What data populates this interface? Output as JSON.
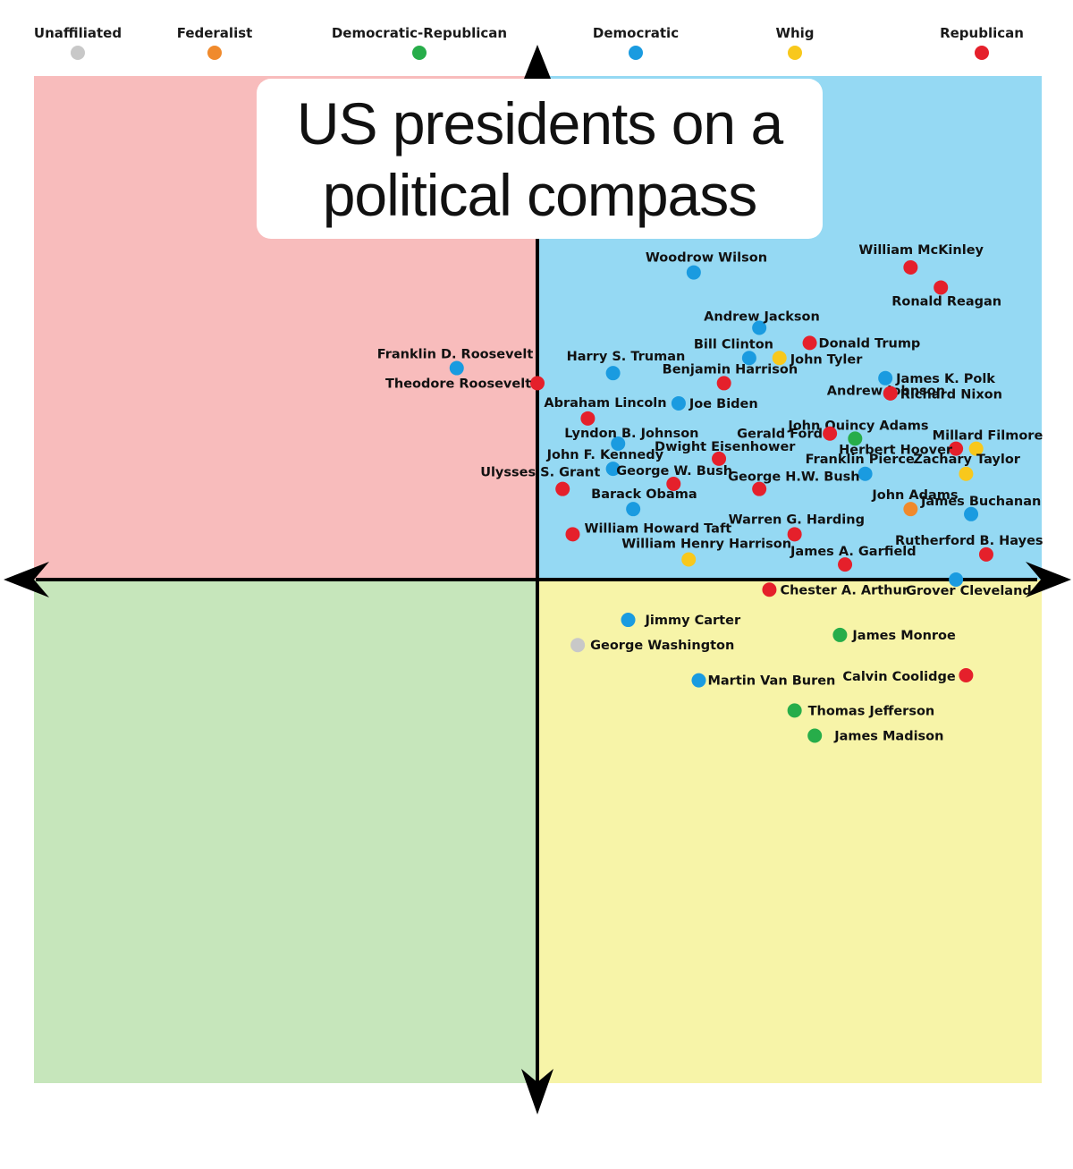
{
  "chart_data": {
    "type": "scatter",
    "title": "US presidents on a political compass",
    "xlim": [
      -1,
      1
    ],
    "ylim": [
      -1,
      1
    ],
    "grid": false,
    "legend_placement": "top",
    "quadrant_colors": {
      "top_left": "#f8bcbc",
      "top_right": "#95d9f3",
      "bottom_left": "#c6e6bb",
      "bottom_right": "#f7f4a8"
    },
    "series": [
      {
        "name": "Unaffiliated",
        "color": "#c8c8c8"
      },
      {
        "name": "Federalist",
        "color": "#f08a2c"
      },
      {
        "name": "Democratic-Republican",
        "color": "#27ad4a"
      },
      {
        "name": "Democratic",
        "color": "#1a9be0"
      },
      {
        "name": "Whig",
        "color": "#f8c81c"
      },
      {
        "name": "Republican",
        "color": "#e5202b"
      }
    ],
    "points": [
      {
        "label": "Woodrow Wilson",
        "party": "Democratic",
        "x": 0.31,
        "y": 0.61
      },
      {
        "label": "William McKinley",
        "party": "Republican",
        "x": 0.74,
        "y": 0.62
      },
      {
        "label": "Ronald Reagan",
        "party": "Republican",
        "x": 0.8,
        "y": 0.58
      },
      {
        "label": "Andrew Jackson",
        "party": "Democratic",
        "x": 0.44,
        "y": 0.5
      },
      {
        "label": "Bill Clinton",
        "party": "Democratic",
        "x": 0.42,
        "y": 0.44
      },
      {
        "label": "Donald Trump",
        "party": "Republican",
        "x": 0.54,
        "y": 0.47
      },
      {
        "label": "John Tyler",
        "party": "Whig",
        "x": 0.48,
        "y": 0.44
      },
      {
        "label": "Franklin D. Roosevelt",
        "party": "Democratic",
        "x": -0.16,
        "y": 0.42
      },
      {
        "label": "Harry S. Truman",
        "party": "Democratic",
        "x": 0.15,
        "y": 0.41
      },
      {
        "label": "Benjamin Harrison",
        "party": "Republican",
        "x": 0.37,
        "y": 0.39
      },
      {
        "label": "James K. Polk",
        "party": "Democratic",
        "x": 0.69,
        "y": 0.4
      },
      {
        "label": "Theodore Roosevelt",
        "party": "Republican",
        "x": 0.0,
        "y": 0.39
      },
      {
        "label": "Andrew Johnson",
        "party": "Republican",
        "x": 0.7,
        "y": 0.37
      },
      {
        "label": "Richard Nixon",
        "party": "Republican",
        "x": 0.7,
        "y": 0.37
      },
      {
        "label": "Abraham Lincoln",
        "party": "Republican",
        "x": 0.1,
        "y": 0.32
      },
      {
        "label": "Joe Biden",
        "party": "Democratic",
        "x": 0.28,
        "y": 0.35
      },
      {
        "label": "John Quincy Adams",
        "party": "Democratic-Republican",
        "x": 0.63,
        "y": 0.28
      },
      {
        "label": "Gerald Ford",
        "party": "Republican",
        "x": 0.58,
        "y": 0.29
      },
      {
        "label": "Millard Filmore",
        "party": "Whig",
        "x": 0.87,
        "y": 0.26
      },
      {
        "label": "Herbert Hoover",
        "party": "Republican",
        "x": 0.83,
        "y": 0.26
      },
      {
        "label": "Lyndon B. Johnson",
        "party": "Democratic",
        "x": 0.16,
        "y": 0.27
      },
      {
        "label": "Dwight Eisenhower",
        "party": "Republican",
        "x": 0.36,
        "y": 0.24
      },
      {
        "label": "John F. Kennedy",
        "party": "Democratic",
        "x": 0.15,
        "y": 0.22
      },
      {
        "label": "Franklin Pierce",
        "party": "Democratic",
        "x": 0.65,
        "y": 0.21
      },
      {
        "label": "Zachary Taylor",
        "party": "Whig",
        "x": 0.85,
        "y": 0.21
      },
      {
        "label": "Ulysses S. Grant",
        "party": "Republican",
        "x": 0.05,
        "y": 0.18
      },
      {
        "label": "George W. Bush",
        "party": "Republican",
        "x": 0.27,
        "y": 0.19
      },
      {
        "label": "George H.W. Bush",
        "party": "Republican",
        "x": 0.44,
        "y": 0.18
      },
      {
        "label": "Barack Obama",
        "party": "Democratic",
        "x": 0.19,
        "y": 0.14
      },
      {
        "label": "John Adams",
        "party": "Federalist",
        "x": 0.74,
        "y": 0.14
      },
      {
        "label": "James Buchanan",
        "party": "Democratic",
        "x": 0.86,
        "y": 0.13
      },
      {
        "label": "William Howard Taft",
        "party": "Republican",
        "x": 0.07,
        "y": 0.09
      },
      {
        "label": "Warren G. Harding",
        "party": "Republican",
        "x": 0.51,
        "y": 0.09
      },
      {
        "label": "William Henry Harrison",
        "party": "Whig",
        "x": 0.3,
        "y": 0.04
      },
      {
        "label": "James A. Garfield",
        "party": "Republican",
        "x": 0.61,
        "y": 0.03
      },
      {
        "label": "Rutherford B. Hayes",
        "party": "Republican",
        "x": 0.89,
        "y": 0.05
      },
      {
        "label": "Chester A. Arthur",
        "party": "Republican",
        "x": 0.46,
        "y": -0.02
      },
      {
        "label": "Grover Cleveland",
        "party": "Democratic",
        "x": 0.83,
        "y": -0.0
      },
      {
        "label": "Jimmy Carter",
        "party": "Democratic",
        "x": 0.18,
        "y": -0.08
      },
      {
        "label": "George Washington",
        "party": "Unaffiliated",
        "x": 0.08,
        "y": -0.13
      },
      {
        "label": "James Monroe",
        "party": "Democratic-Republican",
        "x": 0.6,
        "y": -0.11
      },
      {
        "label": "Martin Van Buren",
        "party": "Democratic",
        "x": 0.32,
        "y": -0.2
      },
      {
        "label": "Calvin Coolidge",
        "party": "Republican",
        "x": 0.85,
        "y": -0.19
      },
      {
        "label": "Thomas Jefferson",
        "party": "Democratic-Republican",
        "x": 0.51,
        "y": -0.26
      },
      {
        "label": "James Madison",
        "party": "Democratic-Republican",
        "x": 0.55,
        "y": -0.31
      }
    ]
  }
}
